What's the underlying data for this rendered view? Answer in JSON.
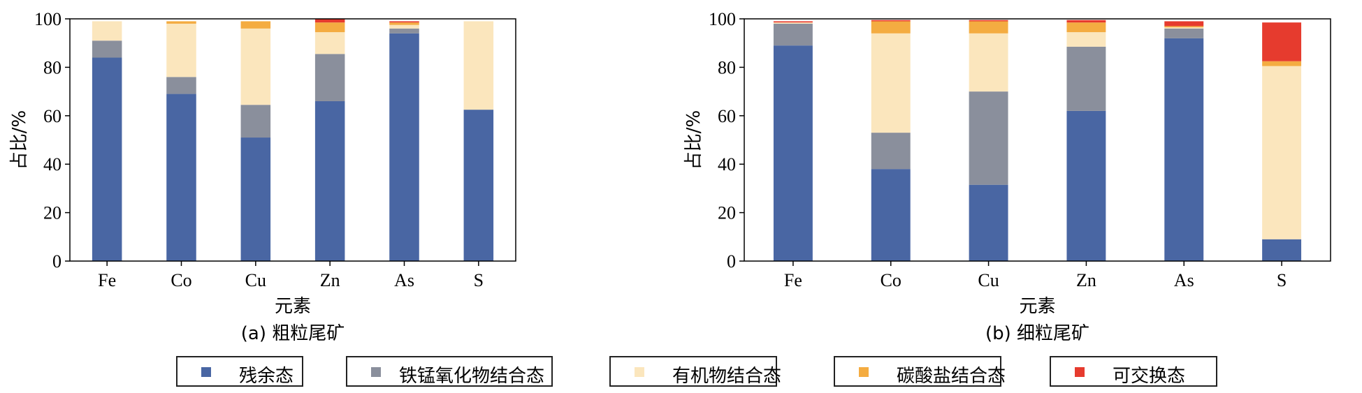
{
  "chart_data": [
    {
      "type": "bar",
      "stacked": true,
      "caption": "(a) 粗粒尾矿",
      "xlabel": "元素",
      "ylabel": "占比/%",
      "ylim": [
        0,
        100
      ],
      "yticks": [
        0,
        20,
        40,
        60,
        80,
        100
      ],
      "categories": [
        "Fe",
        "Co",
        "Cu",
        "Zn",
        "As",
        "S"
      ],
      "series": [
        {
          "name": "残余态",
          "values": [
            84,
            69,
            51,
            66,
            94,
            62.5
          ]
        },
        {
          "name": "铁锰氧化物结合态",
          "values": [
            7,
            7,
            13.5,
            19.5,
            2,
            0
          ]
        },
        {
          "name": "有机物结合态",
          "values": [
            8,
            22,
            31.5,
            9,
            1.5,
            36.5
          ]
        },
        {
          "name": "碳酸盐结合态",
          "values": [
            0,
            1,
            3,
            4,
            1,
            0
          ]
        },
        {
          "name": "可交换态",
          "values": [
            0,
            0,
            0,
            1.5,
            0.5,
            0
          ]
        }
      ]
    },
    {
      "type": "bar",
      "stacked": true,
      "caption": "(b) 细粒尾矿",
      "xlabel": "元素",
      "ylabel": "占比/%",
      "ylim": [
        0,
        100
      ],
      "yticks": [
        0,
        20,
        40,
        60,
        80,
        100
      ],
      "categories": [
        "Fe",
        "Co",
        "Cu",
        "Zn",
        "As",
        "S"
      ],
      "series": [
        {
          "name": "残余态",
          "values": [
            89,
            38,
            31.5,
            62,
            92,
            9
          ]
        },
        {
          "name": "铁锰氧化物结合态",
          "values": [
            9,
            15,
            38.5,
            26.5,
            4,
            0
          ]
        },
        {
          "name": "有机物结合态",
          "values": [
            0.5,
            41,
            24,
            6,
            0.5,
            71.5
          ]
        },
        {
          "name": "碳酸盐结合态",
          "values": [
            0,
            5,
            5,
            4,
            0.5,
            2
          ]
        },
        {
          "name": "可交换态",
          "values": [
            0.5,
            0.5,
            0.5,
            1,
            2,
            16
          ]
        }
      ]
    }
  ],
  "legend": {
    "items": [
      {
        "label": "残余态",
        "color": "#4966a3"
      },
      {
        "label": "铁锰氧化物结合态",
        "color": "#8a8f9c"
      },
      {
        "label": "有机物结合态",
        "color": "#fbe6bd"
      },
      {
        "label": "碳酸盐结合态",
        "color": "#f4ac41"
      },
      {
        "label": "可交换态",
        "color": "#e63b2e"
      }
    ]
  }
}
